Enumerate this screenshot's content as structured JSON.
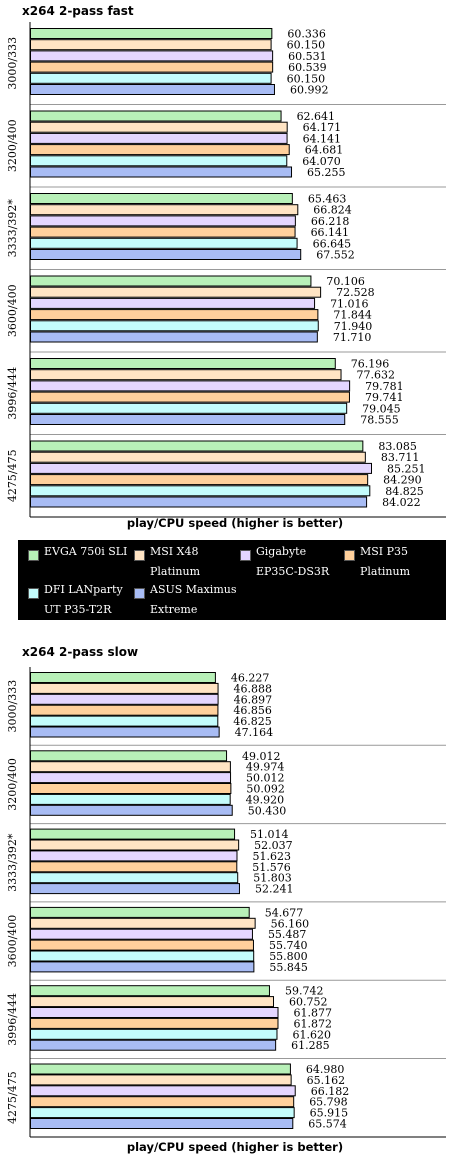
{
  "colors": {
    "series": [
      "#b8f0b8",
      "#ffe4c4",
      "#e4d6ff",
      "#ffd09c",
      "#c4fcfc",
      "#a8bcf4"
    ],
    "bar_border": "#000000",
    "axis": "#000000",
    "separator": "#999999",
    "legend_bg": "#000000",
    "legend_text": "#ffffff"
  },
  "legend": {
    "items": [
      {
        "line1": "EVGA 750i SLI",
        "line2": ""
      },
      {
        "line1": "MSI X48",
        "line2": "Platinum"
      },
      {
        "line1": "Gigabyte",
        "line2": "EP35C-DS3R"
      },
      {
        "line1": "MSI P35",
        "line2": "Platinum"
      },
      {
        "line1": "DFI LANparty",
        "line2": "UT P35-T2R"
      },
      {
        "line1": "ASUS Maximus",
        "line2": "Extreme"
      }
    ]
  },
  "chart_data": [
    {
      "type": "bar",
      "orientation": "horizontal",
      "title": "x264 2-pass fast",
      "xlabel": "play/CPU speed (higher is better)",
      "xlim": [
        0,
        100
      ],
      "categories": [
        "3000/333",
        "3200/400",
        "3333/392*",
        "3600/400",
        "3996/444",
        "4275/475"
      ],
      "series": [
        {
          "name": "EVGA 750i SLI",
          "values": [
            60.336,
            62.641,
            65.463,
            70.106,
            76.196,
            83.085
          ]
        },
        {
          "name": "MSI X48 Platinum",
          "values": [
            60.15,
            64.171,
            66.824,
            72.528,
            77.632,
            83.711
          ]
        },
        {
          "name": "Gigabyte EP35C-DS3R",
          "values": [
            60.531,
            64.141,
            66.218,
            71.016,
            79.781,
            85.251
          ]
        },
        {
          "name": "MSI P35 Platinum",
          "values": [
            60.539,
            64.681,
            66.141,
            71.844,
            79.741,
            84.29
          ]
        },
        {
          "name": "DFI LANparty UT P35-T2R",
          "values": [
            60.15,
            64.07,
            66.645,
            71.94,
            79.045,
            84.825
          ]
        },
        {
          "name": "ASUS Maximus Extreme",
          "values": [
            60.992,
            65.255,
            67.552,
            71.71,
            78.555,
            84.022
          ]
        }
      ],
      "labels": [
        [
          "60.336",
          "60.150",
          "60.531",
          "60.539",
          "60.150",
          "60.992"
        ],
        [
          "62.641",
          "64.171",
          "64.141",
          "64.681",
          "64.070",
          "65.255"
        ],
        [
          "65.463",
          "66.824",
          "66.218",
          "66.141",
          "66.645",
          "67.552"
        ],
        [
          "70.106",
          "72.528",
          "71.016",
          "71.844",
          "71.940",
          "71.710"
        ],
        [
          "76.196",
          "77.632",
          "79.781",
          "79.741",
          "79.045",
          "78.555"
        ],
        [
          "83.085",
          "83.711",
          "85.251",
          "84.290",
          "84.825",
          "84.022"
        ]
      ]
    },
    {
      "type": "bar",
      "orientation": "horizontal",
      "title": "x264 2-pass slow",
      "xlabel": "play/CPU speed (higher is better)",
      "xlim": [
        0,
        80
      ],
      "categories": [
        "3000/333",
        "3200/400",
        "3333/392*",
        "3600/400",
        "3996/444",
        "4275/475"
      ],
      "series": [
        {
          "name": "EVGA 750i SLI",
          "values": [
            46.227,
            49.012,
            51.014,
            54.677,
            59.742,
            64.98
          ]
        },
        {
          "name": "MSI X48 Platinum",
          "values": [
            46.888,
            49.974,
            52.037,
            56.16,
            60.752,
            65.162
          ]
        },
        {
          "name": "Gigabyte EP35C-DS3R",
          "values": [
            46.897,
            50.012,
            51.623,
            55.487,
            61.877,
            66.182
          ]
        },
        {
          "name": "MSI P35 Platinum",
          "values": [
            46.856,
            50.092,
            51.576,
            55.74,
            61.872,
            65.798
          ]
        },
        {
          "name": "DFI LANparty UT P35-T2R",
          "values": [
            46.825,
            49.92,
            51.803,
            55.8,
            61.62,
            65.915
          ]
        },
        {
          "name": "ASUS Maximus Extreme",
          "values": [
            47.164,
            50.43,
            52.241,
            55.845,
            61.285,
            65.574
          ]
        }
      ],
      "labels": [
        [
          "46.227",
          "46.888",
          "46.897",
          "46.856",
          "46.825",
          "47.164"
        ],
        [
          "49.012",
          "49.974",
          "50.012",
          "50.092",
          "49.920",
          "50.430"
        ],
        [
          "51.014",
          "52.037",
          "51.623",
          "51.576",
          "51.803",
          "52.241"
        ],
        [
          "54.677",
          "56.160",
          "55.487",
          "55.740",
          "55.800",
          "55.845"
        ],
        [
          "59.742",
          "60.752",
          "61.877",
          "61.872",
          "61.620",
          "61.285"
        ],
        [
          "64.980",
          "65.162",
          "66.182",
          "65.798",
          "65.915",
          "65.574"
        ]
      ]
    }
  ]
}
